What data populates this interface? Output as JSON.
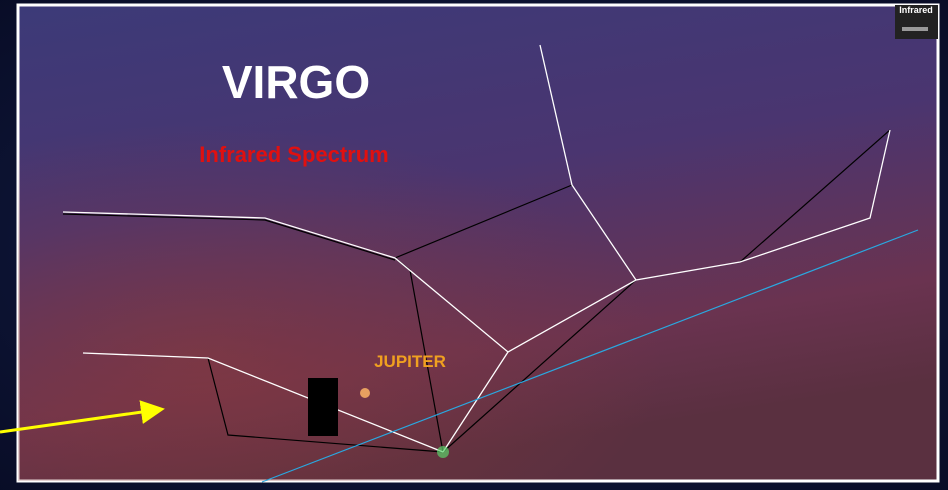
{
  "title": "VIRGO",
  "subtitle": "Infrared Spectrum",
  "planet_label": "JUPITER",
  "badge": "Infrared"
}
